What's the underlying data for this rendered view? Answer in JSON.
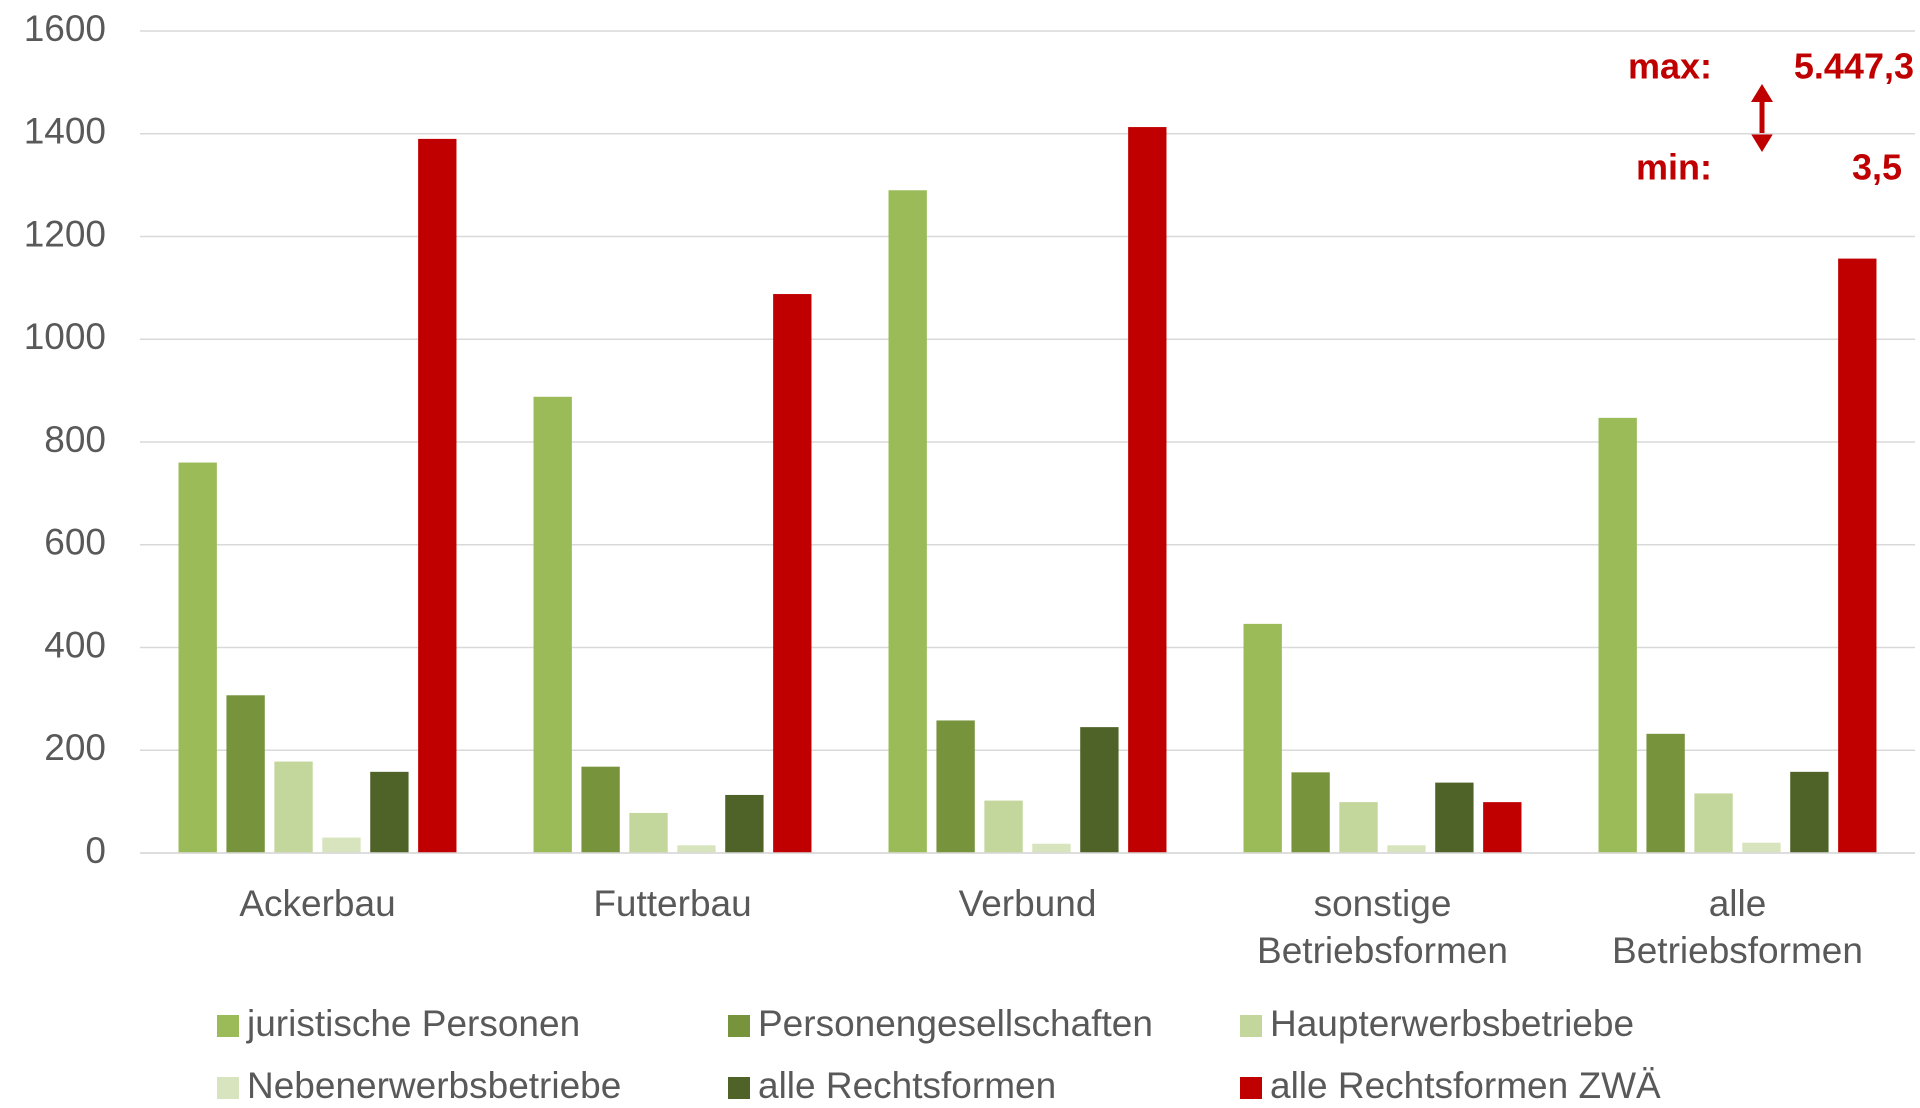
{
  "chart_data": {
    "type": "bar",
    "categories": [
      "Ackerbau",
      "Futterbau",
      "Verbund",
      "sonstige Betriebsformen",
      "alle Betriebsformen"
    ],
    "series": [
      {
        "name": "juristische Personen",
        "color": "#9bbb59",
        "values": [
          760,
          888,
          1290,
          446,
          847
        ]
      },
      {
        "name": "Personengesellschaften",
        "color": "#77933c",
        "values": [
          307,
          168,
          258,
          157,
          232
        ]
      },
      {
        "name": "Haupterwerbsbetriebe",
        "color": "#c3d69b",
        "values": [
          178,
          78,
          102,
          99,
          116
        ]
      },
      {
        "name": "Nebenerwerbsbetriebe",
        "color": "#d7e4bd",
        "values": [
          30,
          15,
          18,
          15,
          20
        ]
      },
      {
        "name": "alle Rechtsformen",
        "color": "#4f6228",
        "values": [
          158,
          113,
          245,
          137,
          158
        ]
      },
      {
        "name": "alle Rechtsformen ZWÄ",
        "color": "#c00000",
        "values": [
          1390,
          1088,
          1413,
          99,
          1157
        ]
      }
    ],
    "ylim": [
      0,
      1600
    ],
    "yticks": [
      0,
      200,
      400,
      600,
      800,
      1000,
      1200,
      1400,
      1600
    ],
    "grid": true,
    "annotations": {
      "max_label": "max:",
      "max_value": "5.447,3",
      "min_label": "min:",
      "min_value": "3,5"
    }
  }
}
